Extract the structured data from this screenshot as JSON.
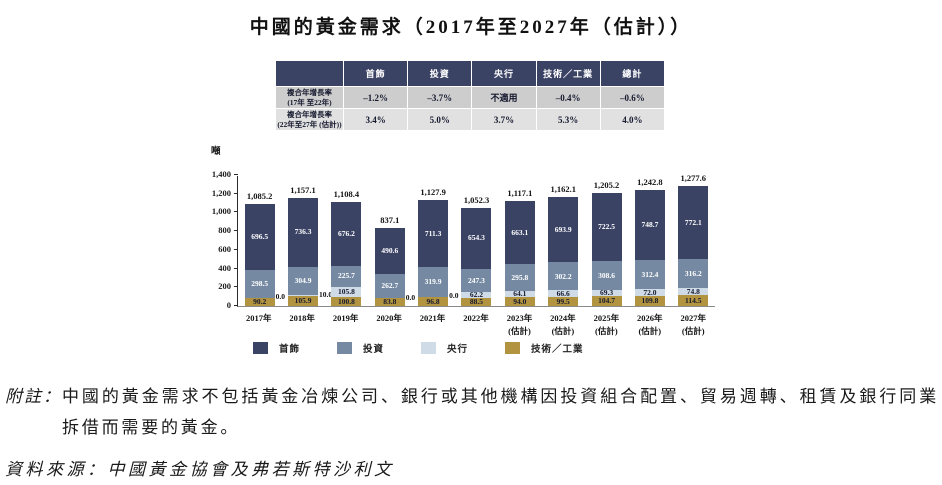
{
  "title": "中國的黃金需求（2017年至2027年（估計））",
  "cagr_table": {
    "corner": "",
    "col_headers": [
      "首飾",
      "投資",
      "央行",
      "技術／工業",
      "總計"
    ],
    "rows": [
      {
        "label_line1": "複合年增長率",
        "label_line2": "(17年 至22年)",
        "values": [
          "–1.2%",
          "–3.7%",
          "不適用",
          "–0.4%",
          "–0.6%"
        ]
      },
      {
        "label_line1": "複合年增長率",
        "label_line2": "(22年至27年 (估計))",
        "values": [
          "3.4%",
          "5.0%",
          "3.7%",
          "5.3%",
          "4.0%"
        ]
      }
    ]
  },
  "chart_data": {
    "type": "bar",
    "stacked": true,
    "unit_label": "噸",
    "ylabel": "噸",
    "ylim": [
      0,
      1400
    ],
    "ytick_step": 200,
    "yticks": [
      "0",
      "200",
      "400",
      "600",
      "800",
      "1,000",
      "1,200",
      "1,400"
    ],
    "grid": false,
    "legend_position": "bottom",
    "categories": [
      "2017年",
      "2018年",
      "2019年",
      "2020年",
      "2021年",
      "2022年",
      "2023年",
      "2024年",
      "2025年",
      "2026年",
      "2027年"
    ],
    "category_sublabels": [
      "",
      "",
      "",
      "",
      "",
      "",
      "(估計)",
      "(估計)",
      "(估計)",
      "(估計)",
      "(估計)"
    ],
    "totals": [
      1085.2,
      1157.1,
      1108.4,
      837.1,
      1127.9,
      1052.3,
      1117.1,
      1162.1,
      1205.2,
      1242.8,
      1277.6
    ],
    "total_labels": [
      "1,085.2",
      "1,157.1",
      "1,108.4",
      "837.1",
      "1,127.9",
      "1,052.3",
      "1,117.1",
      "1,162.1",
      "1,205.2",
      "1,242.8",
      "1,277.6"
    ],
    "series": [
      {
        "name": "技術／工業",
        "color": "#b29440",
        "label_color": "#15192e",
        "values": [
          90.2,
          105.9,
          100.8,
          83.8,
          96.8,
          88.5,
          94.0,
          99.5,
          104.7,
          109.8,
          114.5
        ]
      },
      {
        "name": "央行",
        "color": "#cfdbe7",
        "label_color": "#15192e",
        "values": [
          0.0,
          10.0,
          105.8,
          0.0,
          0.0,
          62.2,
          64.1,
          66.6,
          69.3,
          72.0,
          74.8
        ]
      },
      {
        "name": "投資",
        "color": "#7589a2",
        "label_color": "#ffffff",
        "values": [
          298.5,
          304.9,
          225.7,
          262.7,
          319.9,
          247.3,
          295.8,
          302.2,
          308.6,
          312.4,
          316.2
        ]
      },
      {
        "name": "首飾",
        "color": "#3b4365",
        "label_color": "#ffffff",
        "values": [
          696.5,
          736.3,
          676.2,
          490.6,
          711.3,
          654.3,
          663.1,
          693.9,
          722.5,
          748.7,
          772.1
        ]
      }
    ],
    "legend": [
      {
        "label": "首飾",
        "color": "#3b4365"
      },
      {
        "label": "投資",
        "color": "#7589a2"
      },
      {
        "label": "央行",
        "color": "#cfdbe7"
      },
      {
        "label": "技術／工業",
        "color": "#b29440"
      }
    ]
  },
  "footnote": {
    "label": "附註：",
    "text": "中國的黃金需求不包括黃金冶煉公司、銀行或其他機構因投資組合配置、貿易週轉、租賃及銀行同業拆借而需要的黃金。"
  },
  "source": "資料來源：中國黃金協會及弗若斯特沙利文"
}
